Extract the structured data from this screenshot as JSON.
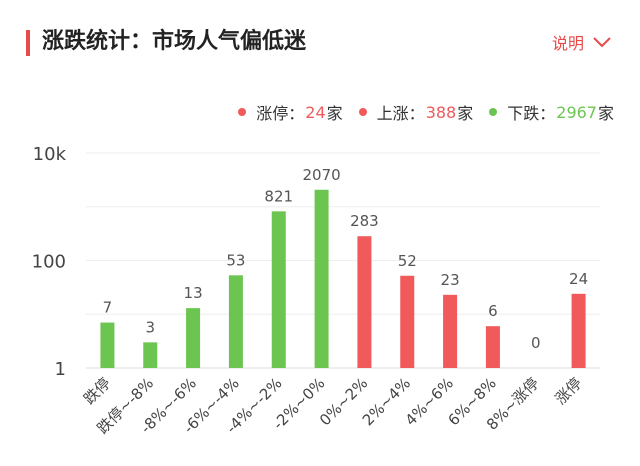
{
  "header": {
    "title": "涨跌统计：市场人气偏低迷",
    "explain_label": "说明",
    "accent_color": "#e84a4a"
  },
  "legend": {
    "items": [
      {
        "label": "涨停：",
        "value": "24",
        "unit": "家",
        "color": "#f05a5a"
      },
      {
        "label": "上涨：",
        "value": "388",
        "unit": "家",
        "color": "#f05a5a"
      },
      {
        "label": "下跌：",
        "value": "2967",
        "unit": "家",
        "color": "#6cc551"
      }
    ]
  },
  "chart_data": {
    "type": "bar",
    "yscale": "log",
    "ylim": [
      1,
      10000
    ],
    "yticks": [
      {
        "value": 1,
        "label": "1"
      },
      {
        "value": 100,
        "label": "100"
      },
      {
        "value": 10000,
        "label": "10k"
      }
    ],
    "grid": true,
    "categories": [
      "跌停",
      "跌停~-8%",
      "-8%~-6%",
      "-6%~-4%",
      "-4%~-2%",
      "-2%~0%",
      "0%~2%",
      "2%~4%",
      "4%~6%",
      "6%~8%",
      "8%~涨停",
      "涨停"
    ],
    "values": [
      7,
      3,
      13,
      53,
      821,
      2070,
      283,
      52,
      23,
      6,
      0,
      24
    ],
    "colors": [
      "#6cc551",
      "#6cc551",
      "#6cc551",
      "#6cc551",
      "#6cc551",
      "#6cc551",
      "#f05a5a",
      "#f05a5a",
      "#f05a5a",
      "#f05a5a",
      "#f05a5a",
      "#f05a5a"
    ]
  }
}
